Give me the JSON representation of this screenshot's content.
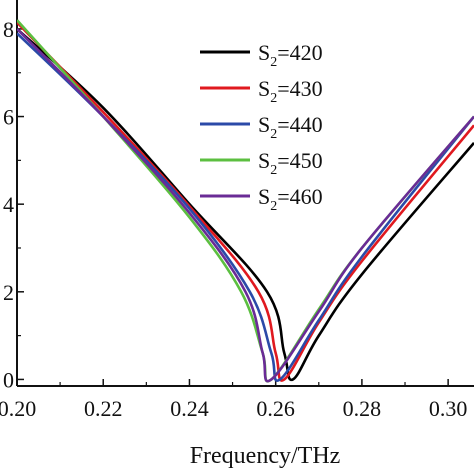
{
  "chart_data": {
    "type": "line",
    "xlabel": "Frequency/THz",
    "ylabel": "",
    "xlim": [
      0.2,
      0.306
    ],
    "ylim": [
      -0.015,
      0.866
    ],
    "x_ticks": [
      {
        "value": 0.2,
        "label": "0.20"
      },
      {
        "value": 0.22,
        "label": "0.22"
      },
      {
        "value": 0.24,
        "label": "0.24"
      },
      {
        "value": 0.26,
        "label": "0.26"
      },
      {
        "value": 0.28,
        "label": "0.28"
      },
      {
        "value": 0.3,
        "label": "0.30"
      }
    ],
    "y_ticks": [
      {
        "value": 0.0,
        "label": "0"
      },
      {
        "value": 0.2,
        "label": "2"
      },
      {
        "value": 0.4,
        "label": "4"
      },
      {
        "value": 0.6,
        "label": "6"
      },
      {
        "value": 0.8,
        "label": "8"
      }
    ],
    "legend": {
      "position": "top-right"
    },
    "series": [
      {
        "name": "S2=420",
        "name_parts": [
          "S",
          "2",
          "=420"
        ],
        "color": "#000000",
        "points": [
          [
            0.2,
            0.8
          ],
          [
            0.22,
            0.62
          ],
          [
            0.24,
            0.4
          ],
          [
            0.258,
            0.2
          ],
          [
            0.262,
            0.06
          ],
          [
            0.264,
            0.0
          ],
          [
            0.27,
            0.1
          ],
          [
            0.28,
            0.24
          ],
          [
            0.306,
            0.54
          ]
        ]
      },
      {
        "name": "S2=430",
        "name_parts": [
          "S",
          "2",
          "=430"
        ],
        "color": "#e0191f",
        "points": [
          [
            0.2,
            0.815
          ],
          [
            0.22,
            0.61
          ],
          [
            0.24,
            0.395
          ],
          [
            0.256,
            0.2
          ],
          [
            0.26,
            0.06
          ],
          [
            0.262,
            0.0
          ],
          [
            0.27,
            0.13
          ],
          [
            0.28,
            0.27
          ],
          [
            0.306,
            0.58
          ]
        ]
      },
      {
        "name": "S2=440",
        "name_parts": [
          "S",
          "2",
          "=440"
        ],
        "color": "#2b4aa8",
        "points": [
          [
            0.2,
            0.79
          ],
          [
            0.22,
            0.6
          ],
          [
            0.24,
            0.39
          ],
          [
            0.254,
            0.2
          ],
          [
            0.259,
            0.06
          ],
          [
            0.261,
            0.0
          ],
          [
            0.27,
            0.135
          ],
          [
            0.28,
            0.28
          ],
          [
            0.306,
            0.6
          ]
        ]
      },
      {
        "name": "S2=450",
        "name_parts": [
          "S",
          "2",
          "=450"
        ],
        "color": "#5cbf40",
        "points": [
          [
            0.2,
            0.82
          ],
          [
            0.22,
            0.6
          ],
          [
            0.24,
            0.37
          ],
          [
            0.252,
            0.2
          ],
          [
            0.257,
            0.06
          ],
          [
            0.259,
            0.0
          ],
          [
            0.27,
            0.16
          ],
          [
            0.28,
            0.3
          ],
          [
            0.306,
            0.6
          ]
        ]
      },
      {
        "name": "S2=460",
        "name_parts": [
          "S",
          "2",
          "=460"
        ],
        "color": "#6a2b96",
        "points": [
          [
            0.2,
            0.8
          ],
          [
            0.22,
            0.6
          ],
          [
            0.24,
            0.38
          ],
          [
            0.253,
            0.2
          ],
          [
            0.257,
            0.06
          ],
          [
            0.259,
            0.0
          ],
          [
            0.27,
            0.155
          ],
          [
            0.28,
            0.3
          ],
          [
            0.306,
            0.6
          ]
        ]
      }
    ]
  }
}
